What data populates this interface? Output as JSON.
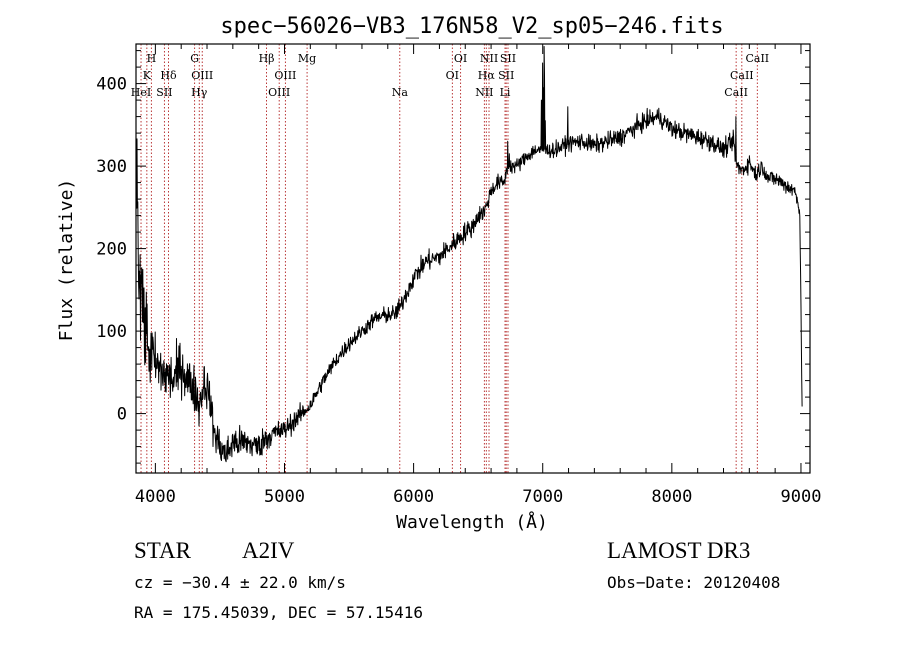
{
  "chart_data": {
    "type": "line",
    "title": "spec−56026−VB3_176N58_V2_sp05−246.fits",
    "xlabel": "Wavelength (Å)",
    "ylabel": "Flux (relative)",
    "xlim": [
      3850,
      9070
    ],
    "ylim": [
      -72,
      448
    ],
    "x_ticks": [
      4000,
      5000,
      6000,
      7000,
      8000,
      9000
    ],
    "y_ticks": [
      0,
      100,
      200,
      300,
      400
    ],
    "grid": false,
    "series": [
      {
        "name": "flux",
        "noise": [
          [
            3850,
            80
          ],
          [
            4000,
            35
          ],
          [
            4200,
            32
          ],
          [
            4400,
            25
          ],
          [
            4600,
            20
          ],
          [
            4900,
            15
          ],
          [
            5200,
            10
          ],
          [
            5600,
            9
          ],
          [
            6000,
            12
          ],
          [
            6400,
            12
          ],
          [
            6700,
            9
          ],
          [
            7000,
            9
          ],
          [
            7500,
            11
          ],
          [
            8000,
            11
          ],
          [
            8500,
            11
          ],
          [
            8700,
            10
          ],
          [
            9000,
            10
          ]
        ],
        "values": [
          [
            3855,
            270
          ],
          [
            3870,
            180
          ],
          [
            3900,
            120
          ],
          [
            3950,
            80
          ],
          [
            4000,
            60
          ],
          [
            4050,
            50
          ],
          [
            4100,
            45
          ],
          [
            4150,
            40
          ],
          [
            4200,
            60
          ],
          [
            4250,
            40
          ],
          [
            4300,
            30
          ],
          [
            4340,
            10
          ],
          [
            4380,
            40
          ],
          [
            4420,
            20
          ],
          [
            4450,
            -20
          ],
          [
            4500,
            -40
          ],
          [
            4550,
            -50
          ],
          [
            4600,
            -35
          ],
          [
            4700,
            -35
          ],
          [
            4800,
            -40
          ],
          [
            4850,
            -30
          ],
          [
            4900,
            -25
          ],
          [
            5000,
            -20
          ],
          [
            5100,
            -5
          ],
          [
            5200,
            10
          ],
          [
            5300,
            40
          ],
          [
            5400,
            65
          ],
          [
            5500,
            85
          ],
          [
            5600,
            100
          ],
          [
            5700,
            115
          ],
          [
            5800,
            120
          ],
          [
            5850,
            120
          ],
          [
            5900,
            130
          ],
          [
            6000,
            165
          ],
          [
            6100,
            185
          ],
          [
            6200,
            190
          ],
          [
            6300,
            205
          ],
          [
            6400,
            220
          ],
          [
            6450,
            225
          ],
          [
            6500,
            240
          ],
          [
            6550,
            245
          ],
          [
            6600,
            270
          ],
          [
            6650,
            280
          ],
          [
            6700,
            280
          ],
          [
            6730,
            300
          ],
          [
            6800,
            300
          ],
          [
            6900,
            315
          ],
          [
            6950,
            320
          ],
          [
            7000,
            318
          ],
          [
            7100,
            320
          ],
          [
            7200,
            328
          ],
          [
            7300,
            330
          ],
          [
            7400,
            325
          ],
          [
            7500,
            330
          ],
          [
            7600,
            335
          ],
          [
            7700,
            345
          ],
          [
            7800,
            355
          ],
          [
            7900,
            360
          ],
          [
            8000,
            345
          ],
          [
            8100,
            340
          ],
          [
            8200,
            335
          ],
          [
            8300,
            330
          ],
          [
            8400,
            320
          ],
          [
            8480,
            330
          ],
          [
            8500,
            300
          ],
          [
            8550,
            295
          ],
          [
            8600,
            305
          ],
          [
            8650,
            290
          ],
          [
            8700,
            300
          ],
          [
            8750,
            285
          ],
          [
            8800,
            285
          ],
          [
            8850,
            280
          ],
          [
            8900,
            275
          ],
          [
            8950,
            270
          ],
          [
            8970,
            260
          ],
          [
            8990,
            250
          ],
          [
            9000,
            130
          ],
          [
            9010,
            0
          ]
        ],
        "spikes": [
          [
            6990,
            380
          ],
          [
            7000,
            425
          ],
          [
            7005,
            395
          ],
          [
            7010,
            445
          ],
          [
            7015,
            410
          ],
          [
            7020,
            355
          ],
          [
            6730,
            330
          ],
          [
            6740,
            315
          ],
          [
            7195,
            372
          ],
          [
            7810,
            370
          ],
          [
            8495,
            360
          ]
        ]
      }
    ],
    "lines": [
      {
        "wave": 3934,
        "label": "K",
        "row": 2
      },
      {
        "wave": 3969,
        "label": "H",
        "row": 1
      },
      {
        "wave": 3889,
        "label": "HeI",
        "row": 3
      },
      {
        "wave": 4070,
        "label": "SII",
        "row": 3
      },
      {
        "wave": 4102,
        "label": "Hδ",
        "row": 2
      },
      {
        "wave": 4304,
        "label": "G",
        "row": 1
      },
      {
        "wave": 4340,
        "label": "Hγ",
        "row": 3
      },
      {
        "wave": 4363,
        "label": "OIII",
        "row": 2
      },
      {
        "wave": 4861,
        "label": "Hβ",
        "row": 1
      },
      {
        "wave": 4959,
        "label": "OIII",
        "row": 3
      },
      {
        "wave": 5007,
        "label": "OIII",
        "row": 2
      },
      {
        "wave": 5175,
        "label": "Mg",
        "row": 1
      },
      {
        "wave": 5893,
        "label": "Na",
        "row": 3
      },
      {
        "wave": 6300,
        "label": "OI",
        "row": 2
      },
      {
        "wave": 6364,
        "label": "OI",
        "row": 1
      },
      {
        "wave": 6548,
        "label": "NII",
        "row": 3
      },
      {
        "wave": 6563,
        "label": "Hα",
        "row": 2
      },
      {
        "wave": 6584,
        "label": "NII",
        "row": 1
      },
      {
        "wave": 6708,
        "label": "Li",
        "row": 3
      },
      {
        "wave": 6717,
        "label": "SII",
        "row": 2
      },
      {
        "wave": 6731,
        "label": "SII",
        "row": 1
      },
      {
        "wave": 8498,
        "label": "CaII",
        "row": 3
      },
      {
        "wave": 8542,
        "label": "CaII",
        "row": 2
      },
      {
        "wave": 8662,
        "label": "CaII",
        "row": 1
      }
    ],
    "colors": {
      "spectrum": "#000000",
      "line_markers": "#b22222",
      "axes": "#000000"
    }
  },
  "info": {
    "object_class": "STAR",
    "subclass": "A2IV",
    "survey": "LAMOST DR3",
    "velocity": "cz = −30.4 ± 22.0 km/s",
    "obs_date": "Obs−Date: 20120408",
    "coordinates": "RA = 175.45039, DEC =  57.15416"
  }
}
